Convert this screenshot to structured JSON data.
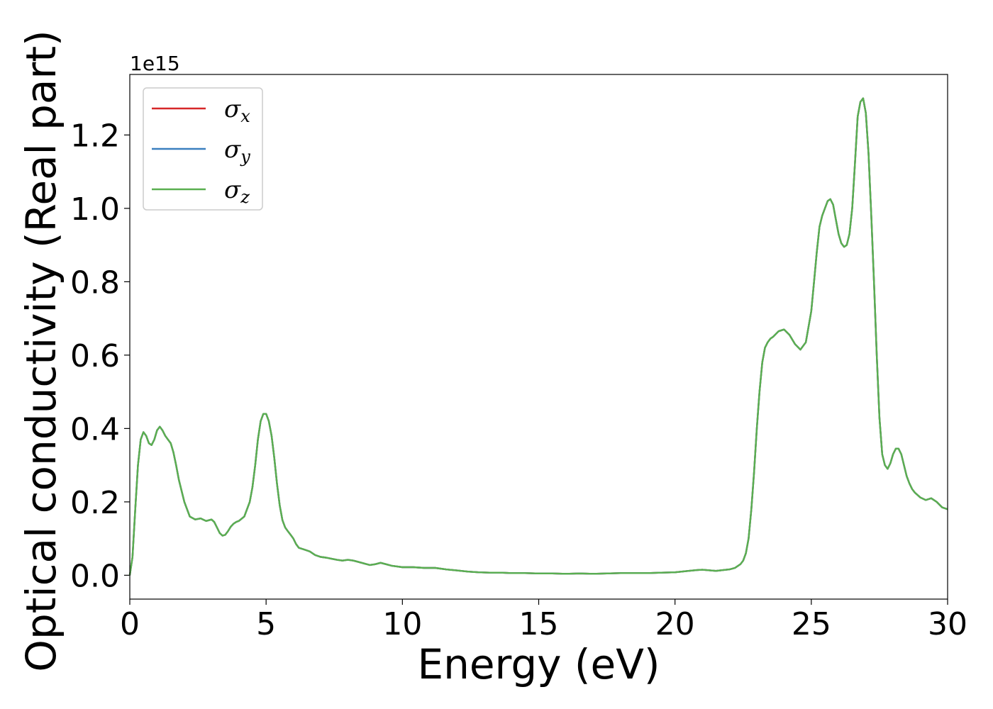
{
  "chart_data": {
    "type": "line",
    "xlabel": "Energy (eV)",
    "ylabel": "Optical conductivity (Real part)",
    "y_offset_text": "1e15",
    "xlim": [
      0,
      30
    ],
    "ylim": [
      -0.065,
      1.365
    ],
    "x_ticks": [
      0,
      5,
      10,
      15,
      20,
      25,
      30
    ],
    "x_tick_labels": [
      "0",
      "5",
      "10",
      "15",
      "20",
      "25",
      "30"
    ],
    "y_ticks": [
      0.0,
      0.2,
      0.4,
      0.6,
      0.8,
      1.0,
      1.2
    ],
    "y_tick_labels": [
      "0.0",
      "0.2",
      "0.4",
      "0.6",
      "0.8",
      "1.0",
      "1.2"
    ],
    "grid": false,
    "legend_position": "top-left",
    "colors": {
      "sigma_x": "#d62728",
      "sigma_y": "#3a7fbf",
      "sigma_z": "#5aaf50"
    },
    "series": [
      {
        "name": "σx",
        "symbol": "σ",
        "subscript": "x",
        "color": "#d62728"
      },
      {
        "name": "σy",
        "symbol": "σ",
        "subscript": "y",
        "color": "#3a7fbf"
      },
      {
        "name": "σz",
        "symbol": "σ",
        "subscript": "z",
        "color": "#5aaf50"
      }
    ],
    "x": [
      0,
      0.1,
      0.2,
      0.3,
      0.4,
      0.5,
      0.6,
      0.7,
      0.8,
      0.9,
      1.0,
      1.1,
      1.2,
      1.3,
      1.4,
      1.5,
      1.6,
      1.7,
      1.8,
      2.0,
      2.2,
      2.4,
      2.6,
      2.8,
      3.0,
      3.1,
      3.2,
      3.3,
      3.4,
      3.5,
      3.6,
      3.7,
      3.8,
      3.9,
      4.0,
      4.2,
      4.4,
      4.5,
      4.6,
      4.7,
      4.8,
      4.9,
      5.0,
      5.1,
      5.2,
      5.3,
      5.4,
      5.5,
      5.6,
      5.7,
      5.8,
      5.9,
      6.0,
      6.1,
      6.2,
      6.4,
      6.6,
      6.8,
      7.0,
      7.2,
      7.4,
      7.6,
      7.8,
      8.0,
      8.2,
      8.4,
      8.6,
      8.8,
      9.0,
      9.2,
      9.4,
      9.6,
      9.8,
      10.0,
      10.4,
      10.8,
      11.2,
      11.6,
      12.0,
      12.4,
      12.8,
      13.2,
      13.6,
      14.0,
      14.5,
      15.0,
      15.5,
      16.0,
      16.5,
      17.0,
      17.5,
      18.0,
      18.5,
      19.0,
      19.5,
      20.0,
      20.5,
      20.8,
      21.0,
      21.5,
      22.0,
      22.2,
      22.4,
      22.5,
      22.6,
      22.7,
      22.8,
      22.9,
      23.0,
      23.1,
      23.2,
      23.3,
      23.4,
      23.5,
      23.6,
      23.8,
      24.0,
      24.2,
      24.4,
      24.6,
      24.8,
      25.0,
      25.1,
      25.2,
      25.3,
      25.4,
      25.5,
      25.6,
      25.7,
      25.8,
      25.9,
      26.0,
      26.1,
      26.2,
      26.3,
      26.4,
      26.5,
      26.6,
      26.7,
      26.8,
      26.9,
      27.0,
      27.1,
      27.2,
      27.3,
      27.4,
      27.5,
      27.6,
      27.7,
      27.8,
      27.9,
      28.0,
      28.1,
      28.2,
      28.3,
      28.4,
      28.5,
      28.6,
      28.7,
      28.8,
      29.0,
      29.2,
      29.4,
      29.6,
      29.8,
      30.0
    ],
    "y": [
      0.0,
      0.05,
      0.18,
      0.3,
      0.37,
      0.39,
      0.38,
      0.36,
      0.355,
      0.37,
      0.395,
      0.405,
      0.395,
      0.38,
      0.37,
      0.36,
      0.335,
      0.3,
      0.26,
      0.2,
      0.16,
      0.152,
      0.155,
      0.148,
      0.152,
      0.145,
      0.13,
      0.115,
      0.108,
      0.11,
      0.12,
      0.132,
      0.14,
      0.145,
      0.148,
      0.16,
      0.2,
      0.24,
      0.3,
      0.37,
      0.42,
      0.44,
      0.44,
      0.42,
      0.38,
      0.32,
      0.25,
      0.19,
      0.15,
      0.13,
      0.12,
      0.11,
      0.1,
      0.085,
      0.075,
      0.07,
      0.065,
      0.055,
      0.05,
      0.048,
      0.045,
      0.042,
      0.04,
      0.042,
      0.04,
      0.036,
      0.032,
      0.028,
      0.03,
      0.034,
      0.03,
      0.026,
      0.024,
      0.022,
      0.022,
      0.02,
      0.02,
      0.016,
      0.013,
      0.01,
      0.008,
      0.007,
      0.007,
      0.006,
      0.006,
      0.005,
      0.005,
      0.004,
      0.005,
      0.004,
      0.005,
      0.006,
      0.006,
      0.006,
      0.007,
      0.008,
      0.012,
      0.014,
      0.015,
      0.012,
      0.016,
      0.02,
      0.03,
      0.04,
      0.06,
      0.1,
      0.18,
      0.28,
      0.4,
      0.5,
      0.58,
      0.62,
      0.635,
      0.645,
      0.65,
      0.665,
      0.67,
      0.655,
      0.63,
      0.615,
      0.635,
      0.72,
      0.8,
      0.88,
      0.95,
      0.98,
      1.0,
      1.02,
      1.025,
      1.01,
      0.97,
      0.93,
      0.905,
      0.895,
      0.9,
      0.93,
      1.0,
      1.12,
      1.25,
      1.29,
      1.3,
      1.26,
      1.15,
      0.98,
      0.8,
      0.6,
      0.43,
      0.33,
      0.3,
      0.29,
      0.305,
      0.33,
      0.345,
      0.345,
      0.33,
      0.3,
      0.27,
      0.25,
      0.235,
      0.225,
      0.212,
      0.205,
      0.21,
      0.2,
      0.185,
      0.18
    ]
  }
}
